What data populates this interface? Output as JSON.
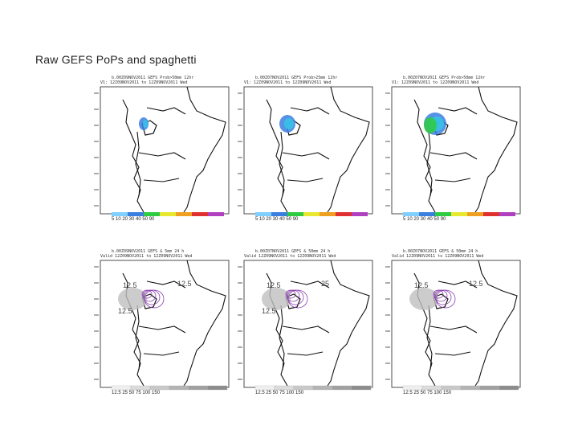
{
  "slide": {
    "title": "Raw GEFS PoPs and spaghetti"
  },
  "panels": [
    {
      "header_line1": "b.00Z09NOV2011 GEFS Prob>50mm 12hr",
      "header_line2": "V1: 12Z09NOV2011 to 12Z09NOV2011 Wed",
      "colorbar_labels": "5  10  20  30  40  50  90",
      "contour_labels": []
    },
    {
      "header_line1": "b.00Z07NOV2011 GEFS Prob>25mm 12hr",
      "header_line2": "V1: 12Z09NOV2011 to 12Z09NOV2011 Wed",
      "colorbar_labels": "5  10  20  30  40  50  90",
      "contour_labels": []
    },
    {
      "header_line1": "b.00Z07NOV2011 GEFS Prob>50mm 12hr",
      "header_line2": "V1: 12Z09NOV2011 to 12Z09NOV2011 Wed",
      "colorbar_labels": "5  10  20  30  40  50  90",
      "contour_labels": []
    },
    {
      "header_line1": "b.00Z09NOV2011 GEFS & 5mm 24 h",
      "header_line2": "Valid 12Z09NOV2011 to 12Z09NOV2011 Wed",
      "colorbar_labels": "12.5  25  50  75  100  150",
      "contour_labels": [
        "12.5",
        "12.5",
        "12.5"
      ]
    },
    {
      "header_line1": "b.00Z07NOV2011 GEFS & 50mm 24 h",
      "header_line2": "Valid 12Z09NOV2011 to 12Z09NOV2011 Wed",
      "colorbar_labels": "12.5  25  50  75  100  150",
      "contour_labels": [
        "12.5",
        "25",
        "12.5"
      ]
    },
    {
      "header_line1": "b.00Z07NOV2011 GEFS & 50mm 24 h",
      "header_line2": "Valid 12Z09NOV2011 to 12Z09NOV2011 Wed",
      "colorbar_labels": "12.5  25  50  75  100  150",
      "contour_labels": [
        "12.5",
        "12.5"
      ]
    }
  ],
  "colors": {
    "map_lines": "#111111",
    "prob_blue": "#3a7fe0",
    "prob_cyan": "#35c6e8",
    "prob_green": "#2ecc40",
    "spaghetti_gray": "#bfbfbf",
    "spaghetti_purple": "#8a3fb0"
  }
}
